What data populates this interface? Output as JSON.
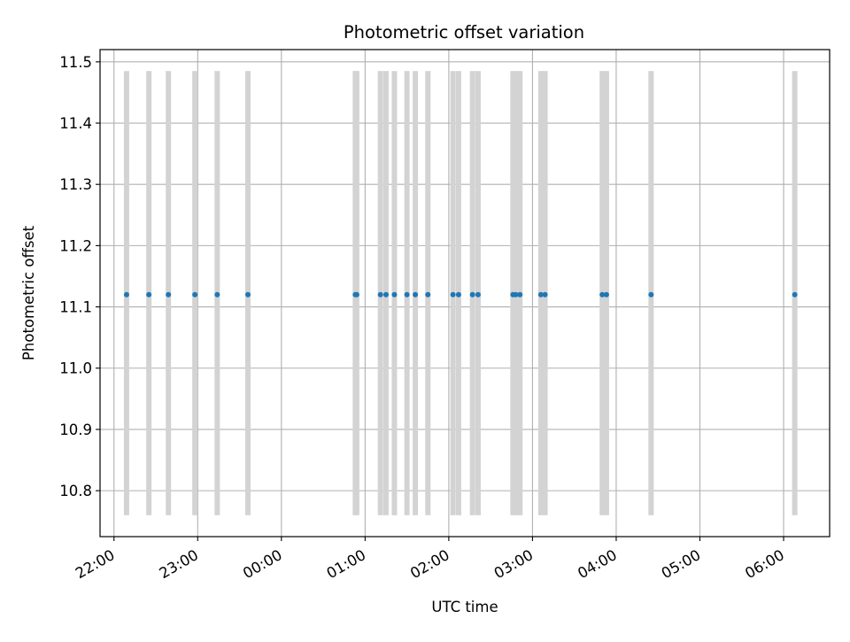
{
  "chart_data": {
    "type": "scatter",
    "title": "Photometric offset variation",
    "xlabel": "UTC time",
    "ylabel": "Photometric offset",
    "x_axis_kind": "time",
    "x_tick_labels": [
      "22:00",
      "23:00",
      "00:00",
      "01:00",
      "02:00",
      "03:00",
      "04:00",
      "05:00",
      "06:00"
    ],
    "y_tick_labels": [
      "10.8",
      "10.9",
      "11.0",
      "11.1",
      "11.2",
      "11.3",
      "11.4",
      "11.5"
    ],
    "y_ticks": [
      10.8,
      10.9,
      11.0,
      11.1,
      11.2,
      11.3,
      11.4,
      11.5
    ],
    "xlim": [
      "21:50",
      "06:33"
    ],
    "ylim": [
      10.725,
      11.52
    ],
    "grid": true,
    "marker_color": "#1f77b4",
    "band_color": "#d3d3d3",
    "band_range": [
      10.76,
      11.485
    ],
    "series": [
      {
        "x": [
          "22:09",
          "22:25",
          "22:39",
          "22:58",
          "23:14",
          "23:36",
          "00:53",
          "00:54",
          "01:11",
          "01:15",
          "01:21",
          "01:30",
          "01:36",
          "01:45",
          "02:03",
          "02:07",
          "02:17",
          "02:21",
          "02:46",
          "02:48",
          "02:51",
          "03:06",
          "03:09",
          "03:50",
          "03:53",
          "04:25",
          "06:08"
        ],
        "y": [
          11.12,
          11.12,
          11.12,
          11.12,
          11.12,
          11.12,
          11.12,
          11.12,
          11.12,
          11.12,
          11.12,
          11.12,
          11.12,
          11.12,
          11.12,
          11.12,
          11.12,
          11.12,
          11.12,
          11.12,
          11.12,
          11.12,
          11.12,
          11.12,
          11.12,
          11.12,
          11.12
        ]
      }
    ]
  }
}
